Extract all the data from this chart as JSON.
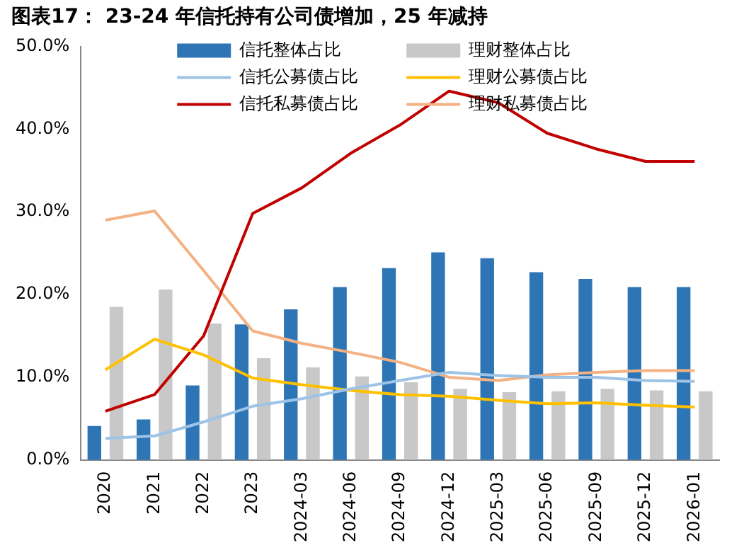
{
  "chart_data": {
    "type": "bar",
    "title": "图表17： 23-24 年信托持有公司债增加，25 年减持",
    "categories": [
      "2020",
      "2021",
      "2022",
      "2023",
      "2024-03",
      "2024-06",
      "2024-09",
      "2024-12",
      "2025-03",
      "2025-06",
      "2025-09",
      "2025-12",
      "2026-01"
    ],
    "series": [
      {
        "name": "信托整体占比",
        "color": "#2e75b6",
        "values": [
          4.1,
          4.9,
          9.0,
          16.4,
          18.2,
          20.9,
          23.2,
          25.1,
          24.4,
          22.7,
          21.9,
          20.9,
          20.9
        ]
      },
      {
        "name": "理财整体占比",
        "color": "#c8c8c8",
        "values": [
          18.5,
          20.6,
          16.5,
          12.3,
          11.2,
          10.1,
          9.4,
          8.6,
          8.2,
          8.3,
          8.6,
          8.4,
          8.3
        ]
      },
      {
        "name": "信托公募债占比",
        "type": "line",
        "color": "#9dc3e6",
        "values": [
          2.6,
          2.9,
          4.6,
          6.5,
          7.4,
          8.6,
          9.6,
          10.6,
          10.2,
          10.0,
          10.0,
          9.6,
          9.5
        ]
      },
      {
        "name": "理财公募债占比",
        "type": "line",
        "color": "#ffc000",
        "values": [
          10.9,
          14.6,
          12.7,
          9.9,
          9.1,
          8.4,
          7.9,
          7.7,
          7.2,
          6.8,
          6.9,
          6.6,
          6.4
        ]
      },
      {
        "name": "信托私募债占比",
        "type": "line",
        "color": "#c00000",
        "values": [
          5.9,
          7.9,
          15.0,
          29.8,
          32.9,
          37.1,
          40.5,
          44.6,
          43.2,
          39.5,
          37.6,
          36.1,
          36.1
        ]
      },
      {
        "name": "理财私募债占比",
        "type": "line",
        "color": "#f4b183",
        "values": [
          29.0,
          30.1,
          22.9,
          15.6,
          14.1,
          13.0,
          11.8,
          10.0,
          9.6,
          10.3,
          10.6,
          10.8,
          10.8
        ]
      }
    ],
    "ylim": [
      0,
      50
    ],
    "yticks": [
      {
        "value": 0,
        "label": "0.0%"
      },
      {
        "value": 10,
        "label": "10.0%"
      },
      {
        "value": 20,
        "label": "20.0%"
      },
      {
        "value": 30,
        "label": "30.0%"
      },
      {
        "value": 40,
        "label": "40.0%"
      },
      {
        "value": 50,
        "label": "50.0%"
      }
    ],
    "grid": false,
    "legend": "top",
    "marker": "none",
    "line_style": "solid"
  }
}
